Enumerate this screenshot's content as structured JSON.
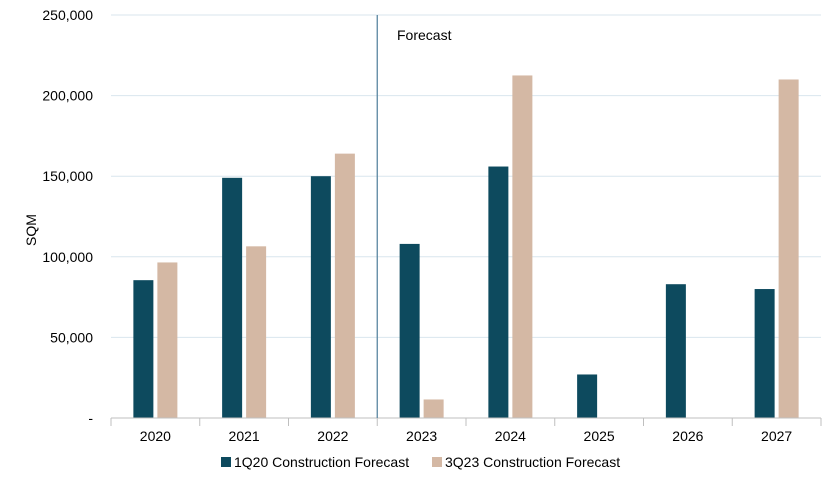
{
  "chart_data": {
    "type": "bar",
    "categories": [
      "2020",
      "2021",
      "2022",
      "2023",
      "2024",
      "2025",
      "2026",
      "2027"
    ],
    "series": [
      {
        "name": "1Q20 Construction Forecast",
        "color": "#0d4a5e",
        "values": [
          85500,
          149000,
          150000,
          108000,
          156000,
          27000,
          83000,
          80000
        ]
      },
      {
        "name": "3Q23 Construction Forecast",
        "color": "#d4b8a4",
        "values": [
          96500,
          106500,
          164000,
          11500,
          212500,
          0,
          0,
          210000
        ]
      }
    ],
    "ylabel": "SQM",
    "ylim": [
      0,
      250000
    ],
    "yticks": [
      0,
      50000,
      100000,
      150000,
      200000,
      250000
    ],
    "ytick_labels": [
      "-",
      "50,000",
      "100,000",
      "150,000",
      "200,000",
      "250,000"
    ],
    "grid": true,
    "legend": "bottom",
    "annotation": {
      "text": "Forecast",
      "divider_between": [
        "2022",
        "2023"
      ]
    }
  }
}
